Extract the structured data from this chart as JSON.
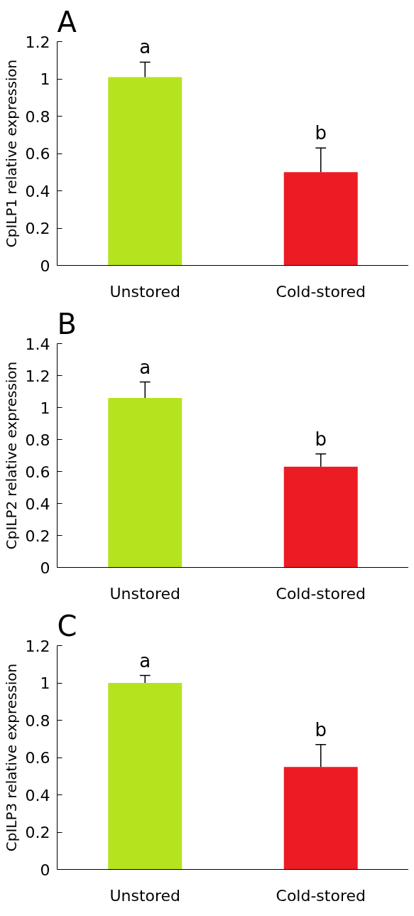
{
  "chart_data": [
    {
      "type": "bar",
      "title": "A",
      "ylabel": "CpILP1 relative expression",
      "categories": [
        "Unstored",
        "Cold-stored"
      ],
      "values": [
        1.01,
        0.5
      ],
      "colors": [
        "#b5e41f",
        "#ec1c24"
      ],
      "errors": [
        [
          1.01,
          1.09
        ],
        [
          0.5,
          0.63
        ]
      ],
      "ylim": [
        0,
        1.2
      ],
      "yticks": [
        0,
        0.2,
        0.4,
        0.6,
        0.8,
        1,
        1.2
      ],
      "grid": false,
      "annotations": [
        {
          "text": "a",
          "x": "Unstored",
          "y": 1.09
        },
        {
          "text": "b",
          "x": "Cold-stored",
          "y": 0.63
        }
      ]
    },
    {
      "type": "bar",
      "title": "B",
      "ylabel": "CpILP2 relative expression",
      "categories": [
        "Unstored",
        "Cold-stored"
      ],
      "values": [
        1.06,
        0.63
      ],
      "colors": [
        "#b5e41f",
        "#ec1c24"
      ],
      "errors": [
        [
          1.06,
          1.16
        ],
        [
          0.63,
          0.71
        ]
      ],
      "ylim": [
        0,
        1.4
      ],
      "yticks": [
        0,
        0.2,
        0.4,
        0.6,
        0.8,
        1,
        1.2,
        1.4
      ],
      "grid": false,
      "annotations": [
        {
          "text": "a",
          "x": "Unstored",
          "y": 1.16
        },
        {
          "text": "b",
          "x": "Cold-stored",
          "y": 0.71
        }
      ]
    },
    {
      "type": "bar",
      "title": "C",
      "ylabel": "CpILP3 relative expression",
      "categories": [
        "Unstored",
        "Cold-stored"
      ],
      "values": [
        1.0,
        0.55
      ],
      "colors": [
        "#b5e41f",
        "#ec1c24"
      ],
      "errors": [
        [
          1.0,
          1.04
        ],
        [
          0.55,
          0.67
        ]
      ],
      "ylim": [
        0,
        1.2
      ],
      "yticks": [
        0,
        0.2,
        0.4,
        0.6,
        0.8,
        1,
        1.2
      ],
      "grid": false,
      "annotations": [
        {
          "text": "a",
          "x": "Unstored",
          "y": 1.04
        },
        {
          "text": "b",
          "x": "Cold-stored",
          "y": 0.67
        }
      ]
    }
  ]
}
